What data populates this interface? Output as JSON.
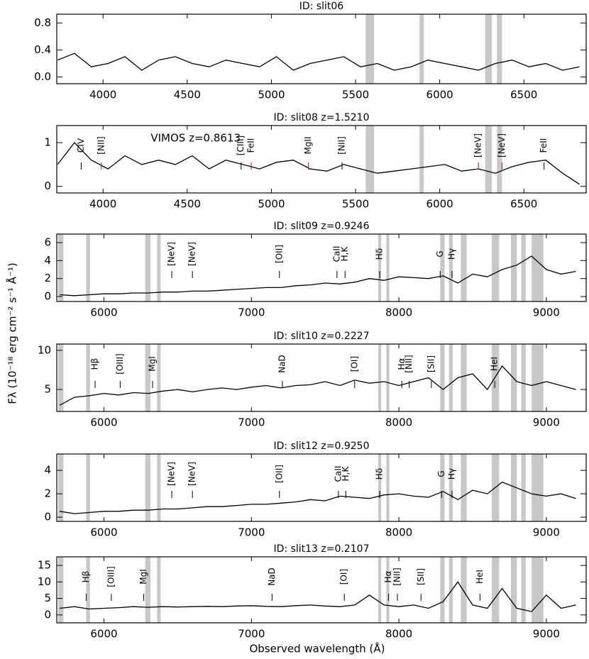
{
  "y_label": "Fλ (10⁻¹⁸ erg cm⁻² s⁻¹ Å⁻¹)",
  "x_label": "Observed wavelength (Å)",
  "chart_data": [
    {
      "type": "line",
      "title": "ID: slit06",
      "x": [
        3730,
        3830,
        3930,
        4030,
        4130,
        4230,
        4330,
        4430,
        4530,
        4630,
        4730,
        4830,
        4930,
        5030,
        5130,
        5230,
        5330,
        5430,
        5530,
        5630,
        5730,
        5830,
        5930,
        6030,
        6130,
        6230,
        6330,
        6430,
        6530,
        6630,
        6730,
        6830
      ],
      "series": [
        {
          "color": "#000000",
          "values": [
            0.25,
            0.35,
            0.15,
            0.2,
            0.3,
            0.1,
            0.25,
            0.3,
            0.2,
            0.15,
            0.25,
            0.2,
            0.15,
            0.3,
            0.1,
            0.2,
            0.25,
            0.3,
            0.15,
            0.2,
            0.1,
            0.15,
            0.25,
            0.2,
            0.15,
            0.1,
            0.2,
            0.25,
            0.15,
            0.2,
            0.1,
            0.15
          ]
        }
      ],
      "bands": [
        [
          5560,
          5610
        ],
        [
          5880,
          5905
        ],
        [
          6270,
          6310
        ],
        [
          6340,
          6370
        ]
      ],
      "band_color": "#c8c8c8",
      "xlim": [
        3725,
        6870
      ],
      "xticks": [
        4000,
        4500,
        5000,
        5500,
        6000,
        6500
      ],
      "ylim": [
        -0.1,
        0.93
      ],
      "yticks": [
        {
          "value": 0,
          "label": "0.0"
        },
        0.4,
        0.8
      ],
      "annotations": []
    },
    {
      "type": "line",
      "title": "ID: slit08 z=1.5210",
      "subtitle": "VIMOS z=0.8613",
      "x": [
        3730,
        3830,
        3930,
        4030,
        4130,
        4230,
        4330,
        4430,
        4530,
        4630,
        4730,
        4830,
        4930,
        5030,
        5130,
        5230,
        5330,
        5430,
        5530,
        5630,
        5730,
        5830,
        5930,
        6030,
        6130,
        6230,
        6330,
        6430,
        6530,
        6630,
        6730,
        6830
      ],
      "series": [
        {
          "color": "#000000",
          "values": [
            0.5,
            1.0,
            0.6,
            0.4,
            0.7,
            0.5,
            0.6,
            0.5,
            0.7,
            0.4,
            0.6,
            0.5,
            0.4,
            0.55,
            0.6,
            0.4,
            0.35,
            0.5,
            0.4,
            0.3,
            0.35,
            0.4,
            0.45,
            0.5,
            0.35,
            0.4,
            0.3,
            0.45,
            0.55,
            0.6,
            0.3,
            0.05
          ]
        }
      ],
      "bands": [
        [
          5560,
          5610
        ],
        [
          5880,
          5905
        ],
        [
          6270,
          6310
        ],
        [
          6340,
          6370
        ]
      ],
      "band_color": "#c8c8c8",
      "xlim": [
        3725,
        6870
      ],
      "xticks": [
        4000,
        4500,
        5000,
        5500,
        6000,
        6500
      ],
      "ylim": [
        -0.15,
        1.39
      ],
      "yticks": [
        0,
        1
      ],
      "annotations": [
        {
          "label": "CIV",
          "x": 3870,
          "color": "#000000"
        },
        {
          "label": "[NII]",
          "x": 3990,
          "color": "#e00000"
        },
        {
          "label": "[CIII]",
          "x": 4820,
          "color": "#000000"
        },
        {
          "label": "FeII",
          "x": 4880,
          "color": "#e00000"
        },
        {
          "label": "MgII",
          "x": 5220,
          "color": "#e00000"
        },
        {
          "label": "[NII]",
          "x": 5420,
          "color": "#000000"
        },
        {
          "label": "[NeV]",
          "x": 6230,
          "color": "#e00000"
        },
        {
          "label": "[NeV]",
          "x": 6370,
          "color": "#e00000"
        },
        {
          "label": "FeII",
          "x": 6620,
          "color": "#000000"
        }
      ]
    },
    {
      "type": "line",
      "title": "ID: slit09 z=0.9246",
      "x": [
        5700,
        5800,
        5900,
        6000,
        6100,
        6200,
        6300,
        6400,
        6500,
        6600,
        6700,
        6800,
        6900,
        7000,
        7100,
        7200,
        7300,
        7400,
        7500,
        7600,
        7700,
        7800,
        7900,
        8000,
        8100,
        8200,
        8300,
        8400,
        8500,
        8600,
        8700,
        8800,
        8900,
        9000,
        9100,
        9200
      ],
      "series": [
        {
          "color": "#000000",
          "values": [
            0.2,
            0.1,
            0.2,
            0.3,
            0.3,
            0.4,
            0.4,
            0.5,
            0.5,
            0.6,
            0.6,
            0.7,
            0.8,
            0.9,
            1.0,
            1.0,
            1.2,
            1.3,
            1.5,
            1.4,
            1.6,
            2.0,
            1.8,
            2.2,
            2.1,
            2.0,
            2.3,
            1.5,
            2.5,
            2.2,
            3.0,
            3.5,
            4.5,
            3.0,
            2.5,
            2.8
          ]
        }
      ],
      "bands": [
        [
          5690,
          5725
        ],
        [
          5880,
          5905
        ],
        [
          6280,
          6315
        ],
        [
          6360,
          6385
        ],
        [
          7860,
          7880
        ],
        [
          7915,
          7935
        ],
        [
          8280,
          8310
        ],
        [
          8340,
          8365
        ],
        [
          8420,
          8460
        ],
        [
          8630,
          8680
        ],
        [
          8760,
          8800
        ],
        [
          8830,
          8860
        ],
        [
          8900,
          8980
        ]
      ],
      "band_color": "#c8c8c8",
      "xlim": [
        5680,
        9270
      ],
      "xticks": [
        6000,
        7000,
        8000,
        9000
      ],
      "ylim": [
        -0.55,
        6.95
      ],
      "yticks": [
        0,
        2,
        4,
        6
      ],
      "annotations": [
        {
          "label": "[NeV]",
          "x": 6460,
          "color": "#000000"
        },
        {
          "label": "[NeV]",
          "x": 6600,
          "color": "#000000"
        },
        {
          "label": "[OII]",
          "x": 7190,
          "color": "#000000"
        },
        {
          "label": "CaII",
          "x": 7580,
          "color": "#000000"
        },
        {
          "label": "H,K",
          "x": 7635,
          "color": "#000000"
        },
        {
          "label": "Hδ",
          "x": 7870,
          "color": "#000000"
        },
        {
          "label": "G",
          "x": 8280,
          "color": "#000000"
        },
        {
          "label": "Hγ",
          "x": 8360,
          "color": "#000000"
        }
      ]
    },
    {
      "type": "line",
      "title": "ID: slit10 z=0.2227",
      "x": [
        5700,
        5800,
        5900,
        6000,
        6100,
        6200,
        6300,
        6400,
        6500,
        6600,
        6700,
        6800,
        6900,
        7000,
        7100,
        7200,
        7300,
        7400,
        7500,
        7600,
        7700,
        7800,
        7900,
        8000,
        8100,
        8200,
        8300,
        8400,
        8500,
        8600,
        8700,
        8800,
        8900,
        9000,
        9100,
        9200
      ],
      "series": [
        {
          "color": "#000000",
          "values": [
            3,
            4,
            4.2,
            4.5,
            4.3,
            4.6,
            4.5,
            4.8,
            5,
            4.7,
            5,
            5.2,
            5,
            5.3,
            5.5,
            5.2,
            5.5,
            5.6,
            6,
            5.5,
            6.2,
            5.8,
            6,
            5.5,
            6,
            6.5,
            5,
            6.5,
            7,
            5,
            8,
            6,
            5.5,
            6,
            5.5,
            5
          ]
        }
      ],
      "bands": [
        [
          5690,
          5725
        ],
        [
          5880,
          5905
        ],
        [
          6280,
          6315
        ],
        [
          6360,
          6385
        ],
        [
          7860,
          7880
        ],
        [
          7915,
          7935
        ],
        [
          8280,
          8310
        ],
        [
          8340,
          8365
        ],
        [
          8420,
          8460
        ],
        [
          8630,
          8680
        ],
        [
          8760,
          8800
        ],
        [
          8830,
          8860
        ],
        [
          8900,
          8980
        ]
      ],
      "band_color": "#c8c8c8",
      "xlim": [
        5680,
        9270
      ],
      "xticks": [
        6000,
        7000,
        8000,
        9000
      ],
      "ylim": [
        2.2,
        10.8
      ],
      "yticks": [
        5,
        10
      ],
      "annotations": [
        {
          "label": "Hβ",
          "x": 5940,
          "color": "#000000"
        },
        {
          "label": "[OIII]",
          "x": 6110,
          "color": "#000000"
        },
        {
          "label": "MgI",
          "x": 6330,
          "color": "#000000"
        },
        {
          "label": "NaD",
          "x": 7210,
          "color": "#000000"
        },
        {
          "label": "[OI]",
          "x": 7700,
          "color": "#000000"
        },
        {
          "label": "Hα",
          "x": 8020,
          "color": "#000000"
        },
        {
          "label": "[NII]",
          "x": 8070,
          "color": "#000000"
        },
        {
          "label": "[SII]",
          "x": 8220,
          "color": "#000000"
        },
        {
          "label": "HeI",
          "x": 8650,
          "color": "#000000"
        }
      ]
    },
    {
      "type": "line",
      "title": "ID: slit12 z=0.9250",
      "x": [
        5700,
        5800,
        5900,
        6000,
        6100,
        6200,
        6300,
        6400,
        6500,
        6600,
        6700,
        6800,
        6900,
        7000,
        7100,
        7200,
        7300,
        7400,
        7500,
        7600,
        7700,
        7800,
        7900,
        8000,
        8100,
        8200,
        8300,
        8400,
        8500,
        8600,
        8700,
        8800,
        8900,
        9000,
        9100,
        9200
      ],
      "series": [
        {
          "color": "#000000",
          "values": [
            0.5,
            0.3,
            0.4,
            0.5,
            0.5,
            0.6,
            0.6,
            0.7,
            0.7,
            0.8,
            0.9,
            0.9,
            1.0,
            1.1,
            1.1,
            1.2,
            1.3,
            1.5,
            1.4,
            1.8,
            1.7,
            1.6,
            1.9,
            2.0,
            1.8,
            1.7,
            2.2,
            1.5,
            2.3,
            2.0,
            3.0,
            2.5,
            2.0,
            1.8,
            2.0,
            1.6
          ]
        }
      ],
      "bands": [
        [
          5690,
          5725
        ],
        [
          5880,
          5905
        ],
        [
          6280,
          6315
        ],
        [
          6360,
          6385
        ],
        [
          7860,
          7880
        ],
        [
          7915,
          7935
        ],
        [
          8280,
          8310
        ],
        [
          8340,
          8365
        ],
        [
          8420,
          8460
        ],
        [
          8630,
          8680
        ],
        [
          8760,
          8800
        ],
        [
          8830,
          8860
        ],
        [
          8900,
          8980
        ]
      ],
      "band_color": "#c8c8c8",
      "xlim": [
        5680,
        9270
      ],
      "xticks": [
        6000,
        7000,
        8000,
        9000
      ],
      "ylim": [
        -0.36,
        5.4
      ],
      "yticks": [
        0,
        2,
        4
      ],
      "annotations": [
        {
          "label": "[NeV]",
          "x": 6460,
          "color": "#000000"
        },
        {
          "label": "[NeV]",
          "x": 6600,
          "color": "#000000"
        },
        {
          "label": "[OII]",
          "x": 7190,
          "color": "#000000"
        },
        {
          "label": "CaII",
          "x": 7590,
          "color": "#000000"
        },
        {
          "label": "H,K",
          "x": 7640,
          "color": "#000000"
        },
        {
          "label": "Hδ",
          "x": 7870,
          "color": "#000000"
        },
        {
          "label": "G",
          "x": 8290,
          "color": "#000000"
        },
        {
          "label": "Hγ",
          "x": 8360,
          "color": "#000000"
        }
      ]
    },
    {
      "type": "line",
      "title": "ID: slit13 z=0.2107",
      "x": [
        5700,
        5800,
        5900,
        6000,
        6100,
        6200,
        6300,
        6400,
        6500,
        6600,
        6700,
        6800,
        6900,
        7000,
        7100,
        7200,
        7300,
        7400,
        7500,
        7600,
        7700,
        7800,
        7900,
        8000,
        8100,
        8200,
        8300,
        8400,
        8500,
        8600,
        8700,
        8800,
        8900,
        9000,
        9100,
        9200
      ],
      "series": [
        {
          "color": "#000000",
          "values": [
            2,
            2.5,
            1.8,
            2,
            2.2,
            2.5,
            2.3,
            2.5,
            2.4,
            2.5,
            2.6,
            2.5,
            2.7,
            2.8,
            2.6,
            2.5,
            2.8,
            3,
            2.7,
            2.5,
            3,
            6,
            3,
            2.5,
            3,
            2,
            4,
            10,
            3,
            2,
            8,
            2,
            1,
            6,
            2,
            3
          ]
        }
      ],
      "bands": [
        [
          5690,
          5725
        ],
        [
          5880,
          5905
        ],
        [
          6280,
          6315
        ],
        [
          6360,
          6385
        ],
        [
          7860,
          7880
        ],
        [
          7915,
          7935
        ],
        [
          8280,
          8310
        ],
        [
          8340,
          8365
        ],
        [
          8420,
          8460
        ],
        [
          8630,
          8680
        ],
        [
          8760,
          8800
        ],
        [
          8830,
          8860
        ],
        [
          8900,
          8980
        ]
      ],
      "band_color": "#c8c8c8",
      "xlim": [
        5680,
        9270
      ],
      "xticks": [
        6000,
        7000,
        8000,
        9000
      ],
      "ylim": [
        -2.4,
        17.6
      ],
      "yticks": [
        0,
        5,
        10,
        15
      ],
      "annotations": [
        {
          "label": "Hβ",
          "x": 5880,
          "color": "#000000"
        },
        {
          "label": "[OIII]",
          "x": 6050,
          "color": "#000000"
        },
        {
          "label": "MgI",
          "x": 6270,
          "color": "#000000"
        },
        {
          "label": "NaD",
          "x": 7140,
          "color": "#000000"
        },
        {
          "label": "[OI]",
          "x": 7630,
          "color": "#000000"
        },
        {
          "label": "Hα",
          "x": 7930,
          "color": "#000000"
        },
        {
          "label": "[NII]",
          "x": 7990,
          "color": "#000000"
        },
        {
          "label": "[SII]",
          "x": 8150,
          "color": "#000000"
        },
        {
          "label": "HeI",
          "x": 8550,
          "color": "#000000"
        }
      ]
    }
  ]
}
